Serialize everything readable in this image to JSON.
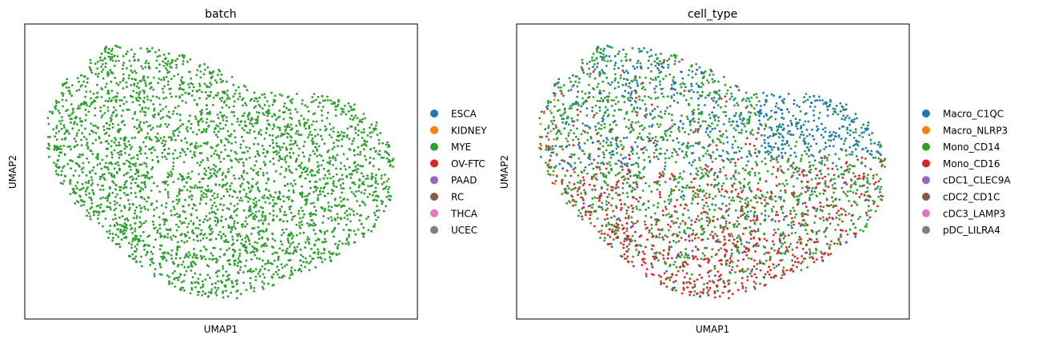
{
  "chart_data": [
    {
      "type": "scatter",
      "title": "batch",
      "xlabel": "UMAP1",
      "ylabel": "UMAP2",
      "grid": false,
      "legend_placement": "right",
      "legend": [
        {
          "label": "ESCA",
          "color": "#1f77b4"
        },
        {
          "label": "KIDNEY",
          "color": "#ff7f0e"
        },
        {
          "label": "MYE",
          "color": "#2ca02c"
        },
        {
          "label": "OV-FTC",
          "color": "#d62728"
        },
        {
          "label": "PAAD",
          "color": "#9467bd"
        },
        {
          "label": "RC",
          "color": "#8c564b"
        },
        {
          "label": "THCA",
          "color": "#e377c2"
        },
        {
          "label": "UCEC",
          "color": "#7f7f7f"
        }
      ],
      "series": [
        {
          "name": "MYE",
          "color": "#2ca02c",
          "share": 1.0
        }
      ]
    },
    {
      "type": "scatter",
      "title": "cell_type",
      "xlabel": "UMAP1",
      "ylabel": "UMAP2",
      "grid": false,
      "legend_placement": "right",
      "legend": [
        {
          "label": "Macro_C1QC",
          "color": "#1f77b4"
        },
        {
          "label": "Macro_NLRP3",
          "color": "#ff7f0e"
        },
        {
          "label": "Mono_CD14",
          "color": "#2ca02c"
        },
        {
          "label": "Mono_CD16",
          "color": "#d62728"
        },
        {
          "label": "cDC1_CLEC9A",
          "color": "#9467bd"
        },
        {
          "label": "cDC2_CD1C",
          "color": "#8c564b"
        },
        {
          "label": "cDC3_LAMP3",
          "color": "#e377c2"
        },
        {
          "label": "pDC_LILRA4",
          "color": "#7f7f7f"
        }
      ],
      "series": [
        {
          "name": "Macro_C1QC",
          "color": "#1f77b4",
          "region": "upper-left, upper-right cluster"
        },
        {
          "name": "Macro_NLRP3",
          "color": "#ff7f0e",
          "region": "left edge, sparse"
        },
        {
          "name": "Mono_CD14",
          "color": "#2ca02c",
          "region": "throughout, upper-middle and right"
        },
        {
          "name": "Mono_CD16",
          "color": "#d62728",
          "region": "lower and left"
        }
      ]
    }
  ]
}
